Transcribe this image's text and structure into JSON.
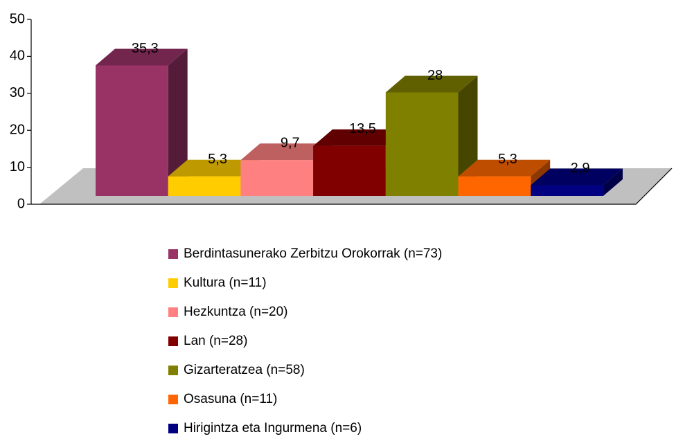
{
  "chart_data": {
    "type": "bar3d",
    "series": [
      {
        "name": "Berdintasunerako Zerbitzu Orokorrak (n=73)",
        "color": "#993366",
        "values": [
          35.3
        ],
        "value_labels": [
          "35,3"
        ]
      },
      {
        "name": "Kultura (n=11)",
        "color": "#ffcc00",
        "values": [
          5.3
        ],
        "value_labels": [
          "5,3"
        ]
      },
      {
        "name": "Hezkuntza (n=20)",
        "color": "#ff8080",
        "values": [
          9.7
        ],
        "value_labels": [
          "9,7"
        ]
      },
      {
        "name": "Lan (n=28)",
        "color": "#800000",
        "values": [
          13.5
        ],
        "value_labels": [
          "13,5"
        ]
      },
      {
        "name": "Gizarteratzea (n=58)",
        "color": "#808000",
        "values": [
          28
        ],
        "value_labels": [
          "28"
        ]
      },
      {
        "name": "Osasuna (n=11)",
        "color": "#ff6600",
        "values": [
          5.3
        ],
        "value_labels": [
          "5,3"
        ]
      },
      {
        "name": "Hirigintza eta Ingurmena (n=6)",
        "color": "#000080",
        "values": [
          2.9
        ],
        "value_labels": [
          "2,9"
        ]
      }
    ],
    "ylim": [
      0,
      50
    ],
    "yticks": [
      0,
      10,
      20,
      30,
      40,
      50
    ],
    "legend": "bottom"
  }
}
